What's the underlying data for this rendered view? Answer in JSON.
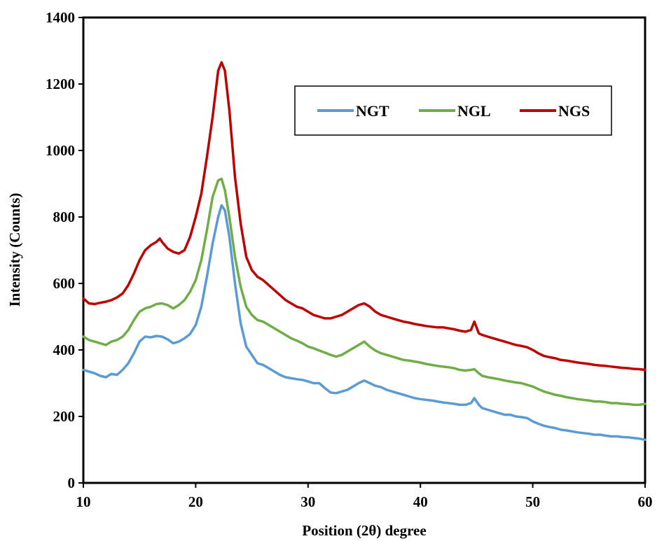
{
  "chart_data": {
    "type": "line",
    "title": "",
    "xlabel": "Position (2θ) degree",
    "ylabel": "Intensity (Counts)",
    "xlim": [
      10,
      60
    ],
    "ylim": [
      0,
      1400
    ],
    "xticks": [
      "10",
      "20",
      "30",
      "40",
      "50",
      "60"
    ],
    "yticks": [
      "0",
      "200",
      "400",
      "600",
      "800",
      "1000",
      "1200",
      "1400"
    ],
    "grid": false,
    "legend_position": "top-right",
    "series": [
      {
        "name": "NGT",
        "color": "#5b9bd5",
        "points": [
          [
            10,
            340
          ],
          [
            10.5,
            335
          ],
          [
            11,
            330
          ],
          [
            11.5,
            322
          ],
          [
            12,
            318
          ],
          [
            12.5,
            328
          ],
          [
            13,
            325
          ],
          [
            13.5,
            340
          ],
          [
            14,
            360
          ],
          [
            14.5,
            390
          ],
          [
            15,
            425
          ],
          [
            15.5,
            440
          ],
          [
            16,
            438
          ],
          [
            16.5,
            442
          ],
          [
            17,
            440
          ],
          [
            17.5,
            432
          ],
          [
            18,
            420
          ],
          [
            18.5,
            425
          ],
          [
            19,
            435
          ],
          [
            19.5,
            448
          ],
          [
            20,
            475
          ],
          [
            20.5,
            530
          ],
          [
            21,
            620
          ],
          [
            21.5,
            720
          ],
          [
            22,
            800
          ],
          [
            22.3,
            835
          ],
          [
            22.6,
            820
          ],
          [
            23,
            740
          ],
          [
            23.5,
            600
          ],
          [
            24,
            480
          ],
          [
            24.5,
            410
          ],
          [
            25,
            385
          ],
          [
            25.5,
            360
          ],
          [
            26,
            355
          ],
          [
            26.5,
            345
          ],
          [
            27,
            335
          ],
          [
            27.5,
            325
          ],
          [
            28,
            318
          ],
          [
            28.5,
            315
          ],
          [
            29,
            312
          ],
          [
            29.5,
            310
          ],
          [
            30,
            305
          ],
          [
            30.5,
            300
          ],
          [
            31,
            300
          ],
          [
            31.5,
            285
          ],
          [
            32,
            272
          ],
          [
            32.5,
            270
          ],
          [
            33,
            275
          ],
          [
            33.5,
            280
          ],
          [
            34,
            290
          ],
          [
            34.5,
            300
          ],
          [
            35,
            308
          ],
          [
            35.5,
            300
          ],
          [
            36,
            292
          ],
          [
            36.5,
            288
          ],
          [
            37,
            280
          ],
          [
            37.5,
            275
          ],
          [
            38,
            270
          ],
          [
            38.5,
            265
          ],
          [
            39,
            260
          ],
          [
            39.5,
            255
          ],
          [
            40,
            252
          ],
          [
            40.5,
            250
          ],
          [
            41,
            248
          ],
          [
            41.5,
            245
          ],
          [
            42,
            242
          ],
          [
            42.5,
            240
          ],
          [
            43,
            238
          ],
          [
            43.5,
            235
          ],
          [
            44,
            235
          ],
          [
            44.5,
            240
          ],
          [
            44.8,
            255
          ],
          [
            45.2,
            235
          ],
          [
            45.5,
            225
          ],
          [
            46,
            220
          ],
          [
            46.5,
            215
          ],
          [
            47,
            210
          ],
          [
            47.5,
            205
          ],
          [
            48,
            205
          ],
          [
            48.5,
            200
          ],
          [
            49,
            198
          ],
          [
            49.5,
            195
          ],
          [
            50,
            185
          ],
          [
            50.5,
            178
          ],
          [
            51,
            172
          ],
          [
            51.5,
            168
          ],
          [
            52,
            165
          ],
          [
            52.5,
            160
          ],
          [
            53,
            158
          ],
          [
            53.5,
            155
          ],
          [
            54,
            152
          ],
          [
            54.5,
            150
          ],
          [
            55,
            148
          ],
          [
            55.5,
            145
          ],
          [
            56,
            145
          ],
          [
            56.5,
            142
          ],
          [
            57,
            140
          ],
          [
            57.5,
            140
          ],
          [
            58,
            138
          ],
          [
            58.5,
            137
          ],
          [
            59,
            135
          ],
          [
            59.5,
            133
          ],
          [
            60,
            130
          ]
        ]
      },
      {
        "name": "NGL",
        "color": "#70ad47",
        "points": [
          [
            10,
            440
          ],
          [
            10.5,
            430
          ],
          [
            11,
            425
          ],
          [
            11.5,
            420
          ],
          [
            12,
            415
          ],
          [
            12.5,
            425
          ],
          [
            13,
            430
          ],
          [
            13.5,
            440
          ],
          [
            14,
            460
          ],
          [
            14.5,
            490
          ],
          [
            15,
            515
          ],
          [
            15.5,
            525
          ],
          [
            16,
            530
          ],
          [
            16.5,
            538
          ],
          [
            17,
            540
          ],
          [
            17.5,
            535
          ],
          [
            18,
            525
          ],
          [
            18.5,
            535
          ],
          [
            19,
            550
          ],
          [
            19.5,
            575
          ],
          [
            20,
            610
          ],
          [
            20.5,
            670
          ],
          [
            21,
            760
          ],
          [
            21.5,
            860
          ],
          [
            22,
            910
          ],
          [
            22.3,
            915
          ],
          [
            22.6,
            880
          ],
          [
            23,
            800
          ],
          [
            23.5,
            680
          ],
          [
            24,
            590
          ],
          [
            24.5,
            530
          ],
          [
            25,
            505
          ],
          [
            25.5,
            490
          ],
          [
            26,
            485
          ],
          [
            26.5,
            475
          ],
          [
            27,
            465
          ],
          [
            27.5,
            455
          ],
          [
            28,
            445
          ],
          [
            28.5,
            435
          ],
          [
            29,
            428
          ],
          [
            29.5,
            420
          ],
          [
            30,
            410
          ],
          [
            30.5,
            405
          ],
          [
            31,
            398
          ],
          [
            31.5,
            392
          ],
          [
            32,
            385
          ],
          [
            32.5,
            380
          ],
          [
            33,
            385
          ],
          [
            33.5,
            395
          ],
          [
            34,
            405
          ],
          [
            34.5,
            415
          ],
          [
            35,
            425
          ],
          [
            35.5,
            410
          ],
          [
            36,
            398
          ],
          [
            36.5,
            390
          ],
          [
            37,
            385
          ],
          [
            37.5,
            380
          ],
          [
            38,
            375
          ],
          [
            38.5,
            370
          ],
          [
            39,
            368
          ],
          [
            39.5,
            365
          ],
          [
            40,
            362
          ],
          [
            40.5,
            358
          ],
          [
            41,
            355
          ],
          [
            41.5,
            352
          ],
          [
            42,
            350
          ],
          [
            42.5,
            348
          ],
          [
            43,
            345
          ],
          [
            43.5,
            340
          ],
          [
            44,
            338
          ],
          [
            44.5,
            340
          ],
          [
            44.8,
            342
          ],
          [
            45.2,
            330
          ],
          [
            45.5,
            322
          ],
          [
            46,
            318
          ],
          [
            46.5,
            315
          ],
          [
            47,
            312
          ],
          [
            47.5,
            308
          ],
          [
            48,
            305
          ],
          [
            48.5,
            302
          ],
          [
            49,
            300
          ],
          [
            49.5,
            295
          ],
          [
            50,
            290
          ],
          [
            50.5,
            282
          ],
          [
            51,
            275
          ],
          [
            51.5,
            270
          ],
          [
            52,
            265
          ],
          [
            52.5,
            262
          ],
          [
            53,
            258
          ],
          [
            53.5,
            255
          ],
          [
            54,
            252
          ],
          [
            54.5,
            250
          ],
          [
            55,
            248
          ],
          [
            55.5,
            245
          ],
          [
            56,
            245
          ],
          [
            56.5,
            243
          ],
          [
            57,
            240
          ],
          [
            57.5,
            240
          ],
          [
            58,
            238
          ],
          [
            58.5,
            237
          ],
          [
            59,
            235
          ],
          [
            59.5,
            235
          ],
          [
            60,
            238
          ]
        ]
      },
      {
        "name": "NGS",
        "color": "#c00000",
        "points": [
          [
            10,
            555
          ],
          [
            10.5,
            540
          ],
          [
            11,
            538
          ],
          [
            11.5,
            542
          ],
          [
            12,
            545
          ],
          [
            12.5,
            550
          ],
          [
            13,
            558
          ],
          [
            13.5,
            570
          ],
          [
            14,
            595
          ],
          [
            14.5,
            630
          ],
          [
            15,
            670
          ],
          [
            15.5,
            700
          ],
          [
            16,
            715
          ],
          [
            16.5,
            725
          ],
          [
            16.8,
            735
          ],
          [
            17,
            725
          ],
          [
            17.5,
            705
          ],
          [
            18,
            695
          ],
          [
            18.5,
            690
          ],
          [
            19,
            700
          ],
          [
            19.5,
            740
          ],
          [
            20,
            800
          ],
          [
            20.5,
            870
          ],
          [
            21,
            980
          ],
          [
            21.5,
            1100
          ],
          [
            22,
            1240
          ],
          [
            22.3,
            1265
          ],
          [
            22.6,
            1240
          ],
          [
            23,
            1120
          ],
          [
            23.5,
            920
          ],
          [
            24,
            780
          ],
          [
            24.5,
            680
          ],
          [
            25,
            640
          ],
          [
            25.5,
            620
          ],
          [
            26,
            610
          ],
          [
            26.5,
            595
          ],
          [
            27,
            580
          ],
          [
            27.5,
            565
          ],
          [
            28,
            550
          ],
          [
            28.5,
            540
          ],
          [
            29,
            530
          ],
          [
            29.5,
            525
          ],
          [
            30,
            515
          ],
          [
            30.5,
            505
          ],
          [
            31,
            500
          ],
          [
            31.5,
            495
          ],
          [
            32,
            495
          ],
          [
            32.5,
            500
          ],
          [
            33,
            505
          ],
          [
            33.5,
            515
          ],
          [
            34,
            525
          ],
          [
            34.5,
            535
          ],
          [
            35,
            540
          ],
          [
            35.5,
            530
          ],
          [
            36,
            515
          ],
          [
            36.5,
            505
          ],
          [
            37,
            500
          ],
          [
            37.5,
            495
          ],
          [
            38,
            490
          ],
          [
            38.5,
            485
          ],
          [
            39,
            482
          ],
          [
            39.5,
            478
          ],
          [
            40,
            475
          ],
          [
            40.5,
            472
          ],
          [
            41,
            470
          ],
          [
            41.5,
            468
          ],
          [
            42,
            468
          ],
          [
            42.5,
            465
          ],
          [
            43,
            462
          ],
          [
            43.5,
            458
          ],
          [
            44,
            455
          ],
          [
            44.5,
            460
          ],
          [
            44.8,
            485
          ],
          [
            45.2,
            450
          ],
          [
            45.5,
            445
          ],
          [
            46,
            440
          ],
          [
            46.5,
            435
          ],
          [
            47,
            430
          ],
          [
            47.5,
            425
          ],
          [
            48,
            420
          ],
          [
            48.5,
            415
          ],
          [
            49,
            412
          ],
          [
            49.5,
            408
          ],
          [
            50,
            400
          ],
          [
            50.5,
            390
          ],
          [
            51,
            382
          ],
          [
            51.5,
            378
          ],
          [
            52,
            375
          ],
          [
            52.5,
            370
          ],
          [
            53,
            368
          ],
          [
            53.5,
            365
          ],
          [
            54,
            362
          ],
          [
            54.5,
            360
          ],
          [
            55,
            358
          ],
          [
            55.5,
            355
          ],
          [
            56,
            353
          ],
          [
            56.5,
            352
          ],
          [
            57,
            350
          ],
          [
            57.5,
            348
          ],
          [
            58,
            346
          ],
          [
            58.5,
            345
          ],
          [
            59,
            343
          ],
          [
            59.5,
            342
          ],
          [
            60,
            340
          ]
        ]
      }
    ]
  }
}
